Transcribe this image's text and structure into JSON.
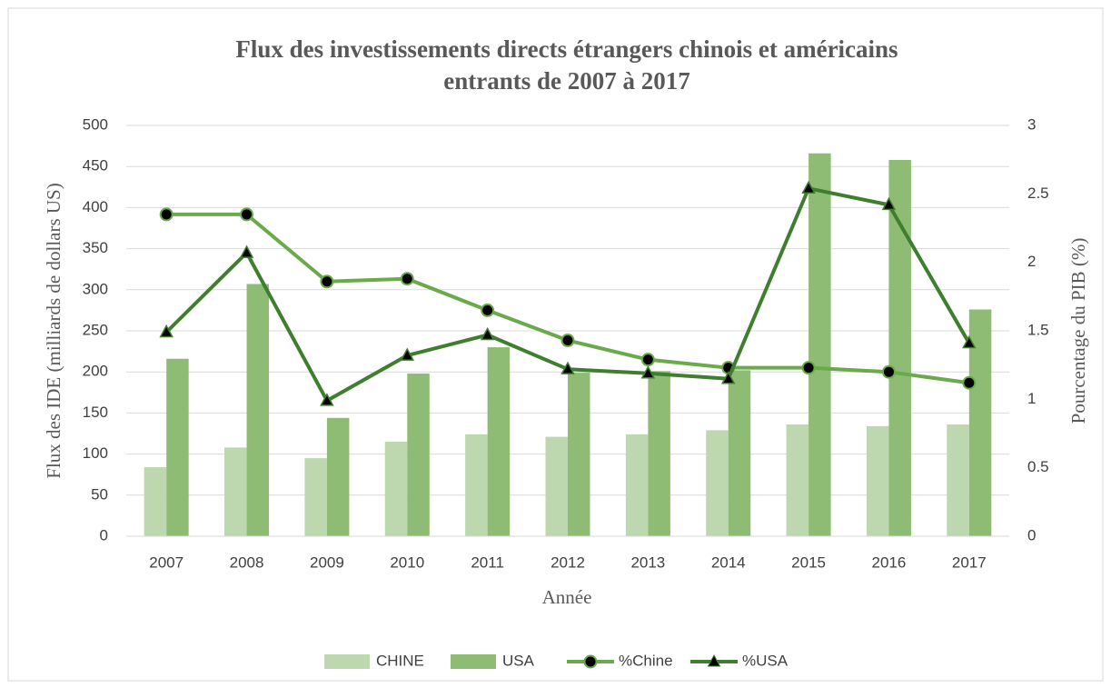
{
  "chart_data": {
    "type": "bar-line",
    "title": [
      "Flux des investissements directs étrangers chinois et américains",
      "entrants de 2007 à 2017"
    ],
    "x_label": "Année",
    "y_label": "Flux des IDE (milliards de dollars US)",
    "y2_label": "Pourcentage du PIB (%)",
    "categories": [
      "2007",
      "2008",
      "2009",
      "2010",
      "2011",
      "2012",
      "2013",
      "2014",
      "2015",
      "2016",
      "2017"
    ],
    "series": [
      {
        "name": "CHINE",
        "type": "bar",
        "color": "#bdd7ae",
        "values": [
          84,
          108,
          95,
          115,
          124,
          121,
          124,
          129,
          136,
          134,
          136
        ]
      },
      {
        "name": "USA",
        "type": "bar",
        "color": "#8fbc74",
        "values": [
          216,
          307,
          144,
          198,
          230,
          199,
          201,
          202,
          466,
          458,
          276
        ]
      },
      {
        "name": "%Chine",
        "type": "line",
        "axis": "y2",
        "marker": "circle",
        "color": "#6aaa4a",
        "values": [
          2.35,
          2.35,
          1.86,
          1.88,
          1.65,
          1.43,
          1.29,
          1.23,
          1.23,
          1.2,
          1.12
        ]
      },
      {
        "name": "%USA",
        "type": "line",
        "axis": "y2",
        "marker": "triangle",
        "color": "#3e7e2e",
        "values": [
          1.49,
          2.07,
          0.99,
          1.32,
          1.47,
          1.22,
          1.19,
          1.15,
          2.54,
          2.42,
          1.41
        ]
      }
    ],
    "ylim": [
      0,
      500
    ],
    "yticks": [
      0,
      50,
      100,
      150,
      200,
      250,
      300,
      350,
      400,
      450,
      500
    ],
    "y2lim": [
      0,
      3
    ],
    "y2ticks": [
      0,
      0.5,
      1,
      1.5,
      2,
      2.5,
      3
    ],
    "grid": true,
    "legend": "bottom"
  }
}
